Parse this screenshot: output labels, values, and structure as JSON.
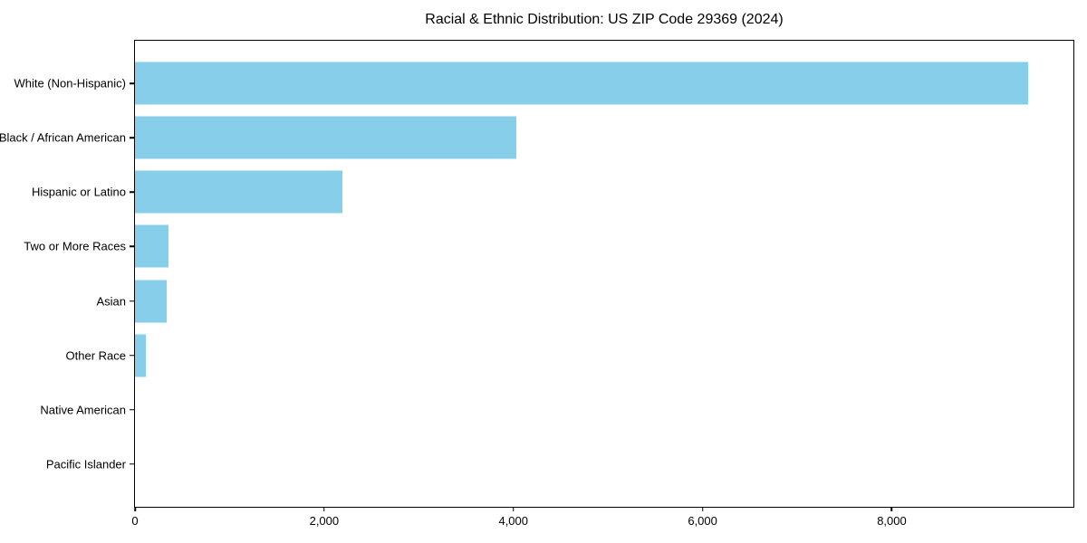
{
  "title": "Racial & Ethnic Distribution: US ZIP Code 29369 (2024)",
  "colors": {
    "bar": "#87CEEB",
    "axis": "#000000",
    "text": "#000000",
    "background": "#ffffff"
  },
  "chart_data": {
    "type": "bar",
    "orientation": "horizontal",
    "title": "Racial & Ethnic Distribution: US ZIP Code 29369 (2024)",
    "xlabel": "",
    "ylabel": "",
    "grid": false,
    "legend": null,
    "categories": [
      "White (Non-Hispanic)",
      "Black / African American",
      "Hispanic or Latino",
      "Two or More Races",
      "Asian",
      "Other Race",
      "Native American",
      "Pacific Islander"
    ],
    "values": [
      9445,
      4035,
      2188,
      351,
      338,
      118,
      0,
      0
    ],
    "xlim": [
      0,
      9920
    ],
    "x_ticks": [
      {
        "value": 0,
        "label": "0"
      },
      {
        "value": 2000,
        "label": "2,000"
      },
      {
        "value": 4000,
        "label": "4,000"
      },
      {
        "value": 6000,
        "label": "6,000"
      },
      {
        "value": 8000,
        "label": "8,000"
      }
    ],
    "bar_color": "#87CEEB"
  }
}
